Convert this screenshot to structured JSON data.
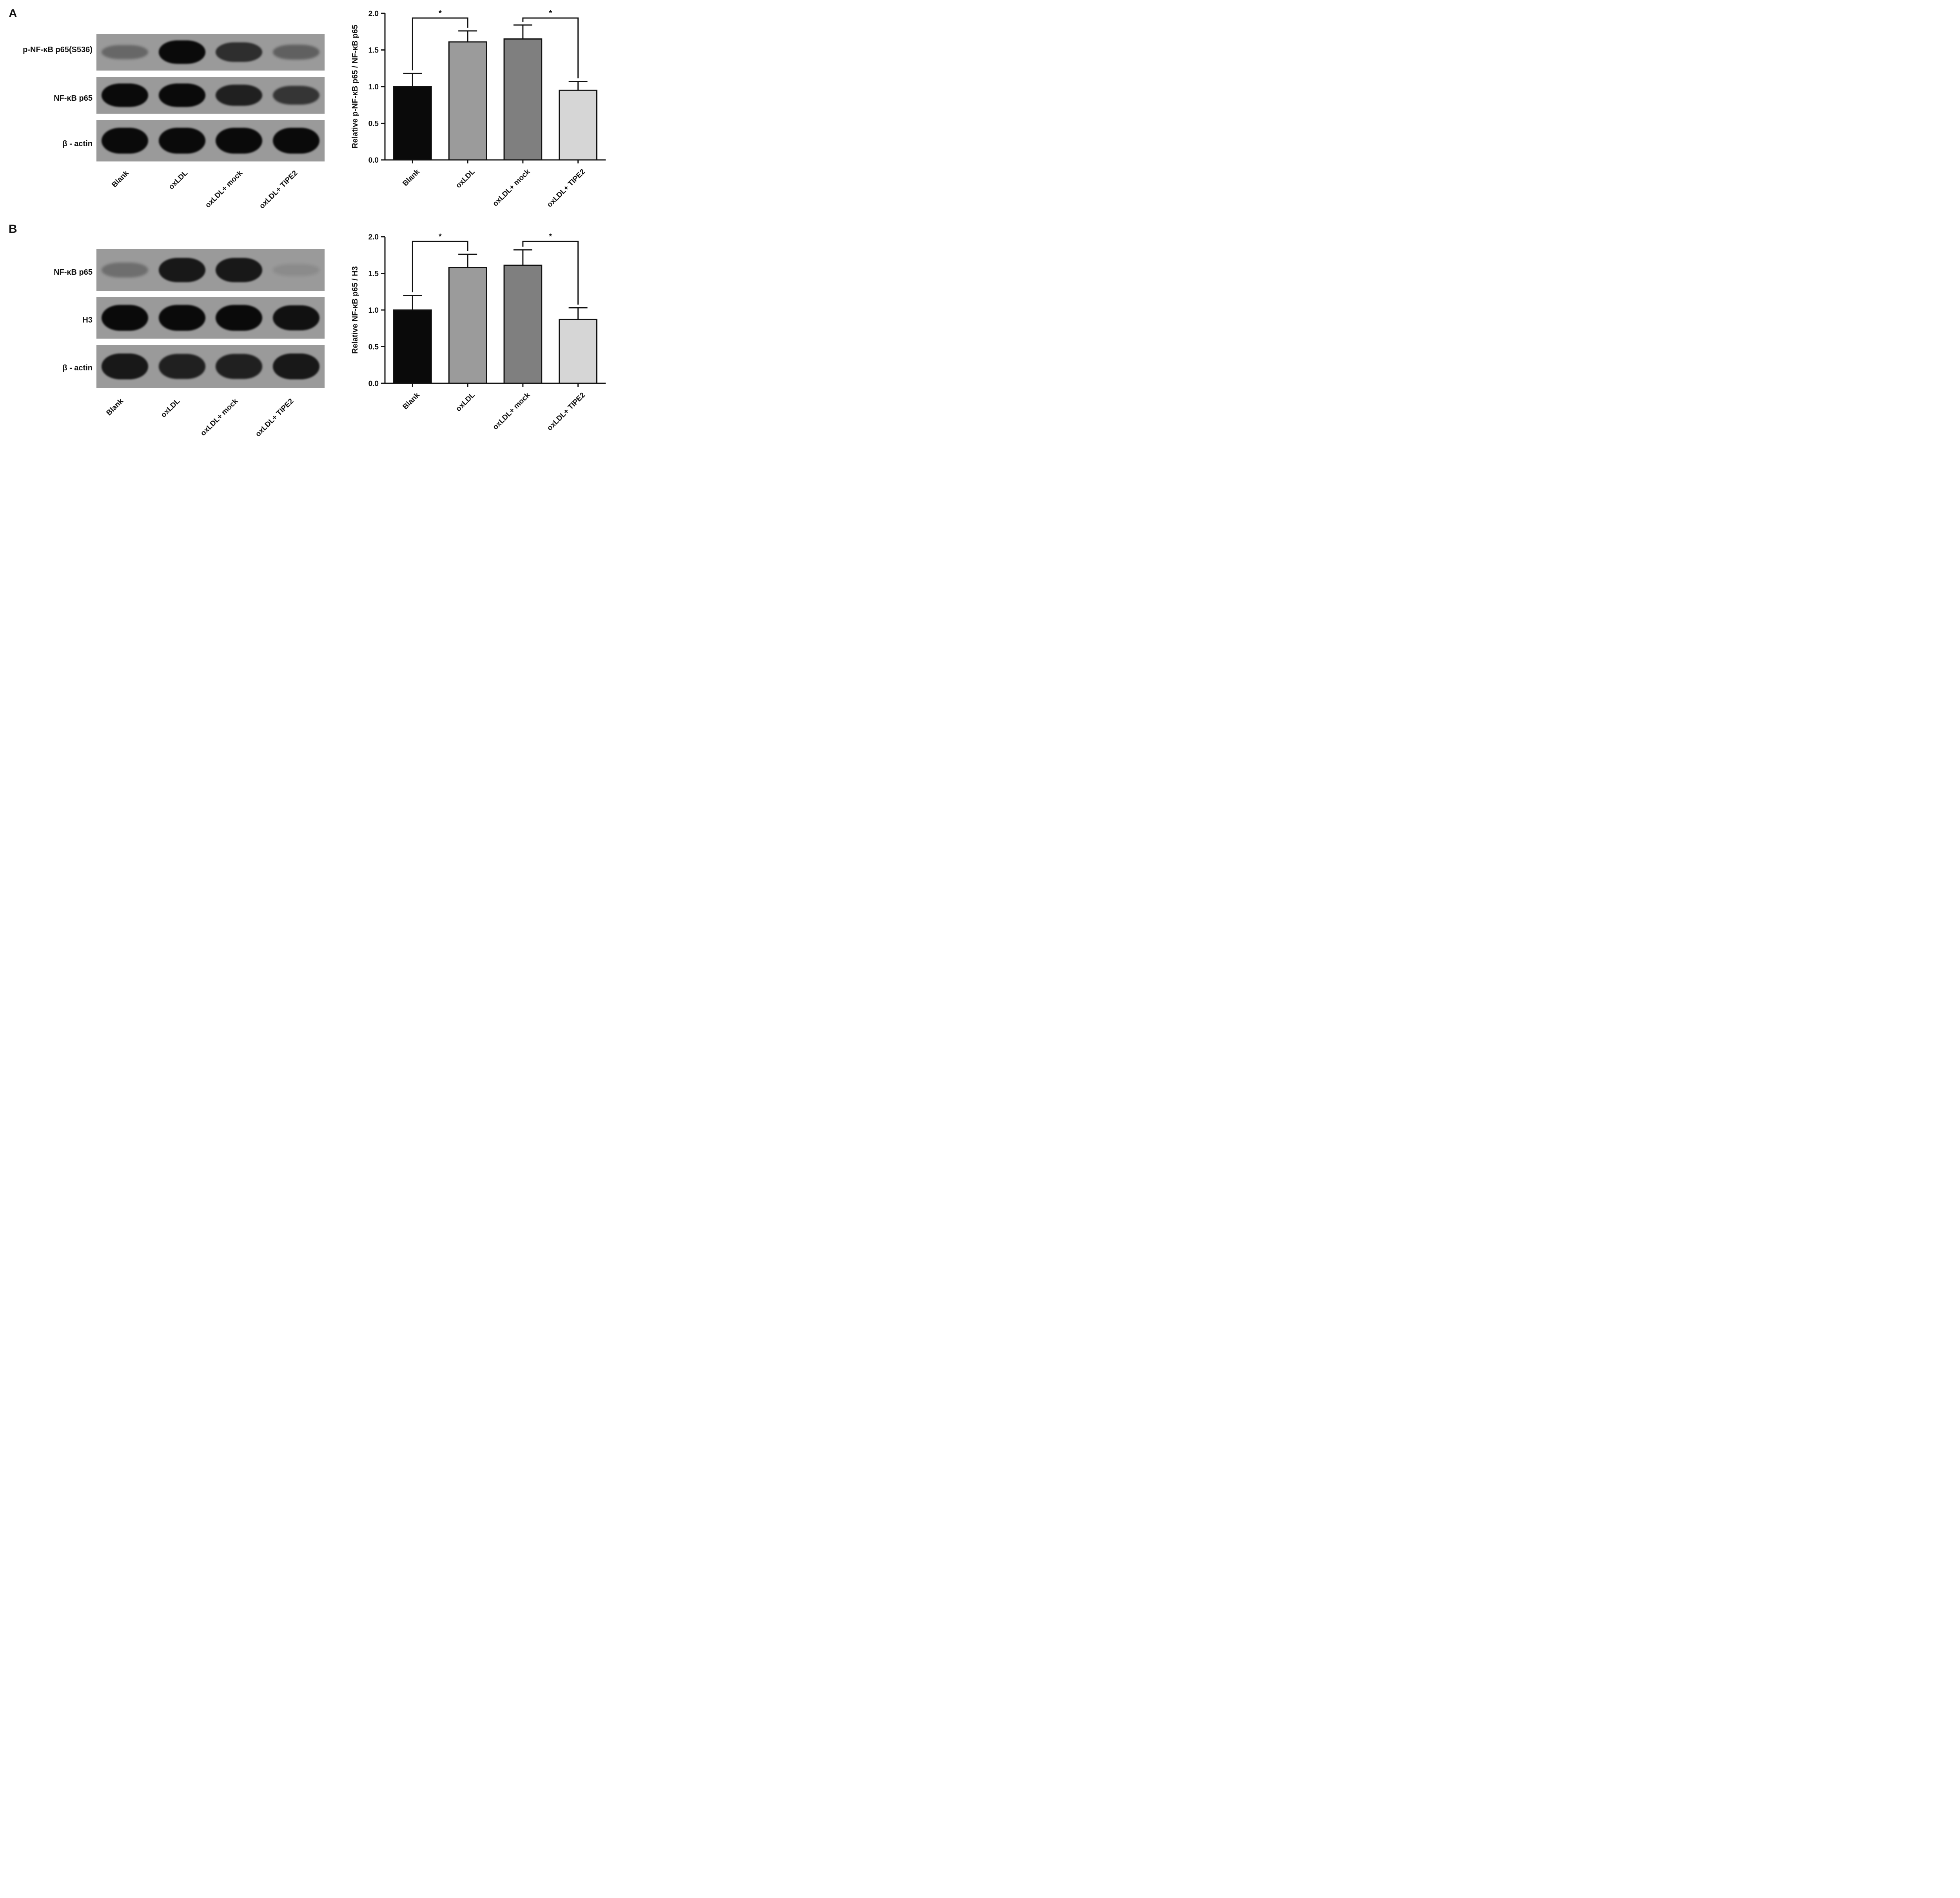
{
  "panels": [
    {
      "letter": "A",
      "blots": [
        {
          "label": "p-NF-κB p65(S536)",
          "intensity": [
            0.35,
            1.0,
            0.75,
            0.4
          ]
        },
        {
          "label": "NF-κB p65",
          "intensity": [
            1.0,
            1.0,
            0.85,
            0.7
          ]
        },
        {
          "label": "β - actin",
          "intensity": [
            1.0,
            1.0,
            1.0,
            1.0
          ]
        }
      ],
      "lanes": [
        "Blank",
        "oxLDL",
        "oxLDL+ mock",
        "oxLDL+ TIPE2"
      ]
    },
    {
      "letter": "B",
      "blots": [
        {
          "label": "NF-κB p65",
          "intensity": [
            0.3,
            0.9,
            0.9,
            0.1
          ]
        },
        {
          "label": "H3",
          "intensity": [
            1.0,
            1.0,
            1.0,
            0.95
          ]
        },
        {
          "label": "β - actin",
          "intensity": [
            0.9,
            0.85,
            0.85,
            0.9
          ]
        }
      ],
      "lanes": [
        "Blank",
        "oxLDL",
        "oxLDL+ mock",
        "oxLDL+ TIPE2"
      ]
    }
  ],
  "chart_data": [
    {
      "type": "bar",
      "categories": [
        "Blank",
        "oxLDL",
        "oxLDL+ mock",
        "oxLDL+ TIPE2"
      ],
      "values": [
        1.0,
        1.61,
        1.65,
        0.95
      ],
      "errors": [
        0.18,
        0.15,
        0.19,
        0.12
      ],
      "ylabel": "Relative p-NF-κB p65 / NF-κB p65",
      "ylim": [
        0,
        2.0
      ],
      "yticks": [
        "0.0",
        "0.5",
        "1.0",
        "1.5",
        "2.0"
      ],
      "significance": [
        {
          "from": 0,
          "to": 1,
          "label": "*"
        },
        {
          "from": 2,
          "to": 3,
          "label": "*"
        }
      ],
      "colors": [
        "#0a0a0a",
        "#9b9b9b",
        "#7f7f7f",
        "#d6d6d6"
      ]
    },
    {
      "type": "bar",
      "categories": [
        "Blank",
        "oxLDL",
        "oxLDL+ mock",
        "oxLDL+ TIPE2"
      ],
      "values": [
        1.0,
        1.58,
        1.61,
        0.87
      ],
      "errors": [
        0.2,
        0.18,
        0.21,
        0.16
      ],
      "ylabel": "Relative NF-κB p65 / H3",
      "ylim": [
        0,
        2.0
      ],
      "yticks": [
        "0.0",
        "0.5",
        "1.0",
        "1.5",
        "2.0"
      ],
      "significance": [
        {
          "from": 0,
          "to": 1,
          "label": "*"
        },
        {
          "from": 2,
          "to": 3,
          "label": "*"
        }
      ],
      "colors": [
        "#0a0a0a",
        "#9b9b9b",
        "#7f7f7f",
        "#d6d6d6"
      ]
    }
  ]
}
